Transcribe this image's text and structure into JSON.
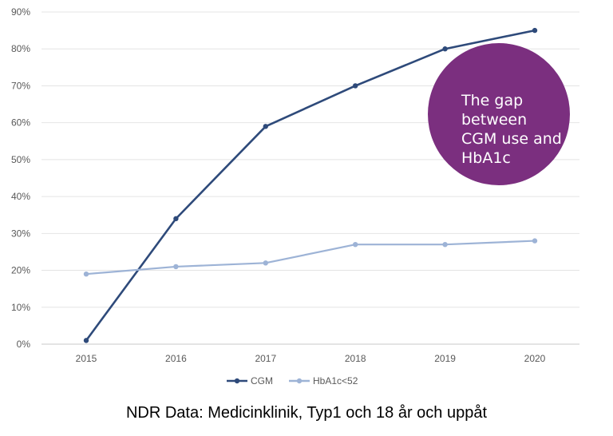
{
  "chart_data": {
    "type": "line",
    "x": [
      "2015",
      "2016",
      "2017",
      "2018",
      "2019",
      "2020"
    ],
    "ylim": [
      0,
      90
    ],
    "y_ticks": [
      "0%",
      "10%",
      "20%",
      "30%",
      "40%",
      "50%",
      "60%",
      "70%",
      "80%",
      "90%"
    ],
    "grid": true,
    "legend_position": "bottom",
    "series": [
      {
        "name": "CGM",
        "values": [
          1,
          34,
          59,
          70,
          80,
          85
        ],
        "color": "#2e4a7a"
      },
      {
        "name": "HbA1c<52",
        "values": [
          19,
          21,
          22,
          27,
          27,
          28
        ],
        "color": "#9db3d6"
      }
    ]
  },
  "annotation": {
    "text": "The gap between CGM use and HbA1c",
    "color": "#7b2f7f"
  },
  "caption": "NDR Data: Medicinklinik, Typ1 och 18 år och uppåt"
}
